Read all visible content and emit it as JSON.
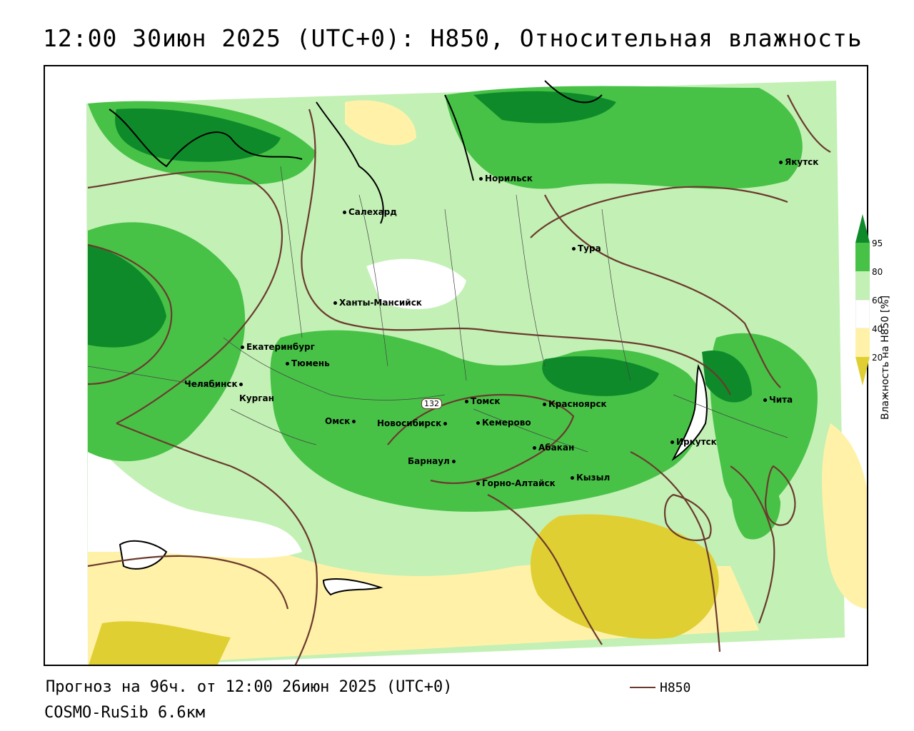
{
  "title": "12:00 30июн 2025 (UTC+0): H850, Относительная влажность",
  "forecast_text": "Прогноз на 96ч. от 12:00 26июн 2025 (UTC+0)",
  "model_text": "COSMO-RuSib 6.6км",
  "legend": {
    "line_label": "H850",
    "line_color": "#6b3a2e"
  },
  "colorbar": {
    "title": "Влажность на H850 [%]",
    "ticks": [
      "95",
      "80",
      "60",
      "40",
      "20"
    ],
    "colors": {
      "c95": "#0e8a2a",
      "c80": "#47c247",
      "c60": "#c3f0b5",
      "c40": "#ffffff",
      "c20": "#fff2a8",
      "c0": "#e0cf33"
    }
  },
  "contour_label": "132",
  "cities": [
    {
      "name": "Якутск"
    },
    {
      "name": "Норильск"
    },
    {
      "name": "Салехард"
    },
    {
      "name": "Тура"
    },
    {
      "name": "Ханты-Мансийск"
    },
    {
      "name": "Екатеринбург"
    },
    {
      "name": "Тюмень"
    },
    {
      "name": "Челябинск"
    },
    {
      "name": "Курган"
    },
    {
      "name": "Омск"
    },
    {
      "name": "Томск"
    },
    {
      "name": "Новосибирск"
    },
    {
      "name": "Кемерово"
    },
    {
      "name": "Красноярск"
    },
    {
      "name": "Абакан"
    },
    {
      "name": "Барнаул"
    },
    {
      "name": "Горно-Алтайск"
    },
    {
      "name": "Кызыл"
    },
    {
      "name": "Иркутск"
    },
    {
      "name": "Чита"
    }
  ]
}
